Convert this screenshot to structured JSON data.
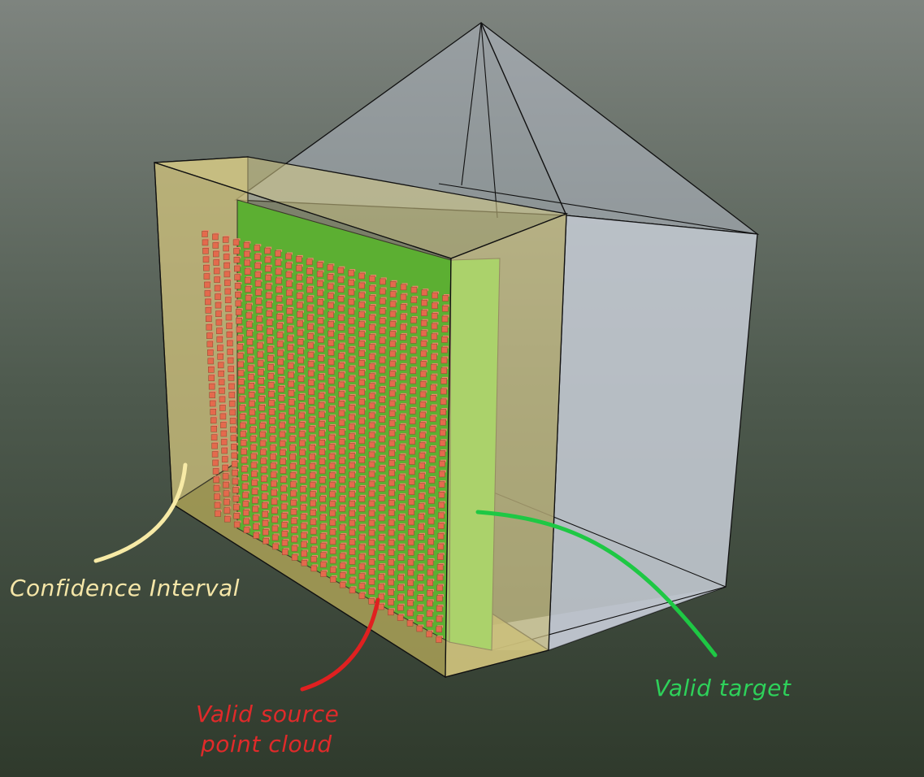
{
  "labels": {
    "confidence_interval": "Confidence Interval",
    "valid_source_line1": "Valid source",
    "valid_source_line2": "point cloud",
    "valid_target": "Valid target"
  },
  "colors": {
    "background_top": "#7e847f",
    "background_bottom": "#2f3a2c",
    "confidence_label": "#f5e6a8",
    "source_label": "#e02a2a",
    "target_label": "#2ed15a",
    "confidence_curve": "#f7eaa6",
    "source_curve": "#e02020",
    "target_curve": "#1ec844",
    "target_plane": "#3cc21e",
    "points": "#e8503e",
    "frustum": "#c6ccd6",
    "confidence_box": "#d2c47a"
  },
  "point_cloud": {
    "rows": 34,
    "cols": 24
  }
}
